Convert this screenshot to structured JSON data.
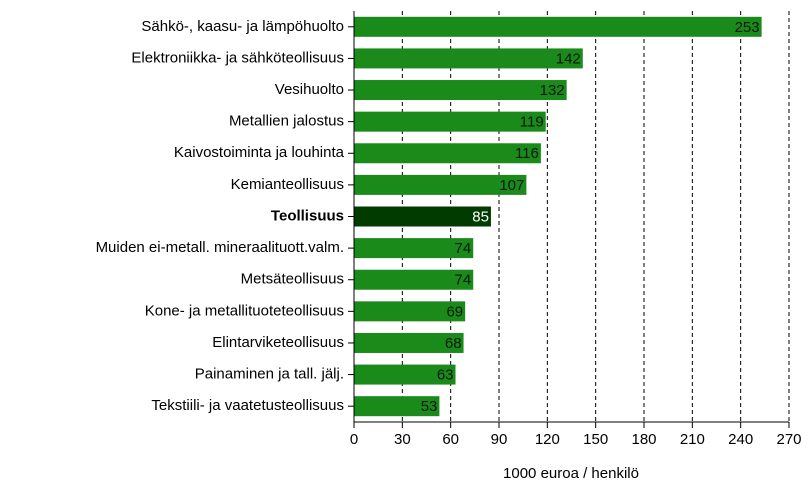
{
  "chart_data": {
    "type": "bar",
    "orientation": "horizontal",
    "x_label": "1000 euroa / henkilö",
    "categories": [
      "Sähkö-, kaasu- ja lämpöhuolto",
      "Elektroniikka- ja sähköteollisuus",
      "Vesihuolto",
      "Metallien jalostus",
      "Kaivostoiminta ja louhinta",
      "Kemianteollisuus",
      "Teollisuus",
      "Muiden ei-metall. mineraalituott.valm.",
      "Metsäteollisuus",
      "Kone- ja metallituoteteollisuus",
      "Elintarviketeollisuus",
      "Painaminen ja tall. jälj.",
      "Tekstiili- ja vaatetusteollisuus"
    ],
    "values": [
      253,
      142,
      132,
      119,
      116,
      107,
      85,
      74,
      74,
      69,
      68,
      63,
      53
    ],
    "colors": [
      "#1a8a1a",
      "#1a8a1a",
      "#1a8a1a",
      "#1a8a1a",
      "#1a8a1a",
      "#1a8a1a",
      "#003c00",
      "#1a8a1a",
      "#1a8a1a",
      "#1a8a1a",
      "#1a8a1a",
      "#1a8a1a",
      "#1a8a1a"
    ],
    "bold": [
      false,
      false,
      false,
      false,
      false,
      false,
      true,
      false,
      false,
      false,
      false,
      false,
      false
    ],
    "xlim": [
      0,
      270
    ],
    "xticks": [
      0,
      30,
      60,
      90,
      120,
      150,
      180,
      210,
      240,
      270
    ],
    "grid": true
  }
}
